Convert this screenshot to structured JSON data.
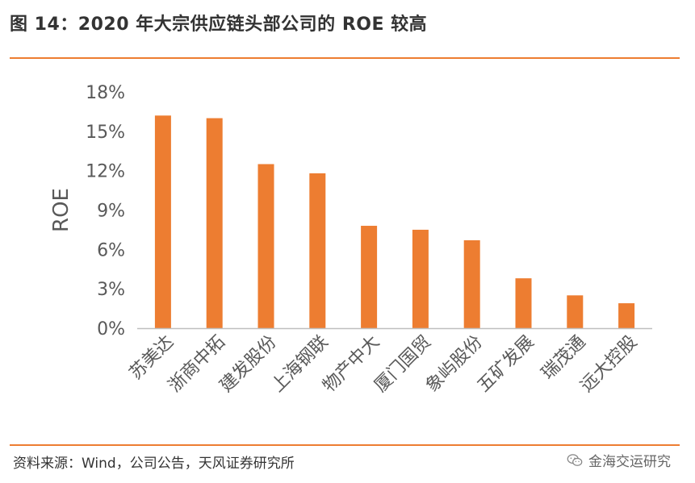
{
  "header": {
    "title": "图 14：2020 年大宗供应链头部公司的 ROE 较高"
  },
  "colors": {
    "accent": "#ED7D31",
    "text": "#595959",
    "axis": "#BFBFBF"
  },
  "footer": {
    "source": "资料来源：Wind，公司公告，天风证券研究所",
    "watermark": "金海交运研究",
    "watermark_icon": "wechat-icon"
  },
  "chart_data": {
    "type": "bar",
    "ylabel": "ROE",
    "categories": [
      "苏美达",
      "浙商中拓",
      "建发股份",
      "上海钢联",
      "物产中大",
      "厦门国贸",
      "象屿股份",
      "五矿发展",
      "瑞茂通",
      "远大控股"
    ],
    "values": [
      16.2,
      16.0,
      12.5,
      11.8,
      7.8,
      7.5,
      6.7,
      3.8,
      2.5,
      1.9
    ],
    "ylim": [
      0,
      18
    ],
    "yticks": [
      0,
      3,
      6,
      9,
      12,
      15,
      18
    ],
    "ytick_labels": [
      "0%",
      "3%",
      "6%",
      "9%",
      "12%",
      "15%",
      "18%"
    ],
    "grid": false,
    "legend": "none"
  }
}
